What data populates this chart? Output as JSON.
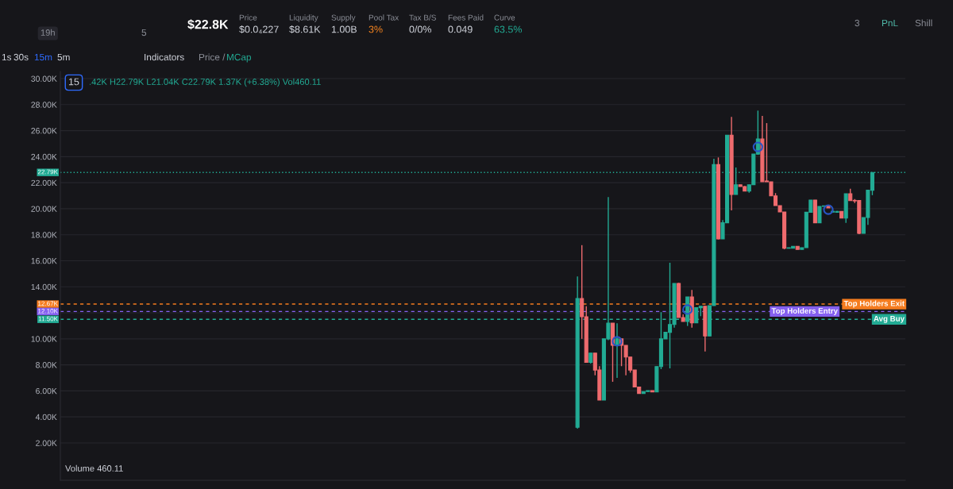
{
  "chart_data": {
    "type": "candlestick",
    "tick_labels": "y",
    "grid": "y",
    "categories": [
      null,
      null,
      null,
      null,
      null,
      null,
      null,
      null,
      null,
      null,
      null,
      null,
      null,
      null,
      null,
      null,
      null,
      null,
      null,
      null,
      null,
      null,
      null,
      null,
      null,
      null,
      null,
      null,
      null,
      null,
      null,
      null,
      null,
      null,
      null,
      null,
      null,
      null,
      null,
      null,
      null,
      null,
      null,
      null,
      null,
      null,
      null,
      null,
      null,
      null,
      null,
      null,
      null,
      null,
      null,
      null,
      null,
      null,
      null,
      null,
      null,
      null,
      null,
      null,
      null,
      null,
      null,
      null,
      null,
      null,
      null,
      null,
      null,
      null,
      null,
      null,
      null,
      null,
      null,
      null,
      null,
      null,
      null,
      null,
      null,
      null,
      null,
      null,
      null,
      null,
      null,
      null,
      null,
      null,
      null,
      null,
      null,
      null,
      null,
      null,
      null,
      null,
      null,
      null,
      null,
      null,
      null,
      null,
      null,
      null,
      null,
      null,
      null,
      null,
      null,
      null,
      null,
      null,
      null,
      null,
      null,
      null,
      null,
      null,
      null,
      null,
      null,
      null,
      null,
      null,
      null,
      null,
      null,
      null,
      null,
      null,
      null,
      null,
      null,
      null,
      null,
      null,
      null,
      null,
      null,
      null,
      null,
      null,
      null,
      null,
      null,
      null,
      null,
      null,
      null,
      null,
      null,
      null,
      null,
      null,
      null,
      null,
      null,
      null,
      null,
      null,
      null,
      null,
      null,
      null,
      null,
      null,
      null,
      null,
      null,
      null,
      null,
      null,
      null,
      null,
      null,
      null,
      null,
      null,
      null,
      null,
      null,
      null,
      null,
      null,
      null,
      null
    ],
    "ohlc": [
      null,
      null,
      null,
      null,
      null,
      null,
      null,
      null,
      null,
      null,
      null,
      null,
      null,
      null,
      null,
      null,
      null,
      null,
      null,
      null,
      null,
      null,
      null,
      null,
      null,
      null,
      null,
      null,
      null,
      null,
      null,
      null,
      null,
      null,
      null,
      null,
      null,
      null,
      null,
      null,
      null,
      null,
      null,
      null,
      null,
      null,
      null,
      null,
      null,
      null,
      null,
      null,
      null,
      null,
      null,
      null,
      null,
      null,
      null,
      null,
      null,
      null,
      null,
      null,
      null,
      null,
      null,
      null,
      null,
      null,
      null,
      null,
      null,
      null,
      null,
      null,
      null,
      null,
      null,
      null,
      null,
      null,
      null,
      null,
      null,
      null,
      null,
      null,
      null,
      null,
      null,
      null,
      null,
      null,
      null,
      null,
      null,
      null,
      null,
      null,
      null,
      null,
      null,
      null,
      null,
      null,
      null,
      null,
      null,
      null,
      null,
      null,
      null,
      null,
      null,
      null,
      null,
      [
        3.2,
        14.8,
        3.1,
        13.1
      ],
      [
        13.1,
        17.2,
        10.0,
        11.7
      ],
      [
        11.7,
        12.5,
        8.2,
        8.2
      ],
      [
        8.2,
        8.9,
        8.1,
        8.9
      ],
      [
        8.9,
        8.9,
        7.2,
        7.6
      ],
      [
        7.6,
        7.9,
        5.3,
        5.3
      ],
      [
        5.3,
        10.0,
        5.3,
        10.0
      ],
      [
        10.0,
        20.9,
        9.9,
        11.2
      ],
      [
        11.2,
        11.2,
        6.7,
        9.5
      ],
      [
        9.5,
        11.2,
        7.0,
        10.0
      ],
      [
        10.0,
        10.0,
        7.9,
        9.5
      ],
      [
        9.5,
        9.5,
        7.2,
        8.6
      ],
      [
        8.6,
        8.6,
        7.4,
        7.6
      ],
      [
        7.6,
        7.6,
        6.3,
        6.3
      ],
      [
        6.3,
        6.3,
        5.8,
        5.8
      ],
      [
        5.8,
        5.95,
        5.8,
        5.95
      ],
      [
        5.95,
        6.02,
        5.95,
        6.02
      ],
      [
        6.02,
        6.02,
        5.92,
        5.92
      ],
      [
        5.92,
        7.87,
        5.92,
        7.87
      ],
      [
        7.87,
        12.05,
        7.67,
        10.0
      ],
      [
        10.0,
        10.5,
        10.0,
        10.5
      ],
      [
        10.5,
        15.85,
        7.73,
        11.1
      ],
      [
        11.1,
        14.26,
        10.86,
        14.26
      ],
      [
        14.26,
        14.3,
        11.64,
        11.64
      ],
      [
        11.64,
        11.88,
        11.33,
        11.33
      ],
      [
        11.33,
        13.22,
        10.99,
        13.22
      ],
      [
        13.22,
        13.76,
        10.86,
        11.23
      ],
      [
        11.23,
        12.39,
        11.23,
        12.39
      ],
      [
        12.39,
        12.51,
        11.74,
        12.51
      ],
      [
        12.51,
        12.51,
        9.03,
        10.22
      ],
      [
        10.22,
        12.55,
        10.22,
        12.55
      ],
      [
        12.55,
        23.84,
        12.55,
        23.39
      ],
      [
        23.39,
        23.94,
        17.64,
        17.68
      ],
      [
        17.68,
        19.12,
        17.68,
        18.92
      ],
      [
        18.92,
        25.65,
        18.92,
        25.65
      ],
      [
        25.65,
        27.05,
        19.87,
        21.09
      ],
      [
        21.09,
        23.17,
        21.09,
        21.84
      ],
      [
        21.84,
        21.84,
        21.7,
        21.7
      ],
      [
        21.7,
        21.75,
        21.36,
        21.36
      ],
      [
        21.36,
        21.84,
        21.23,
        21.84
      ],
      [
        21.84,
        24.2,
        21.84,
        24.2
      ],
      [
        24.2,
        27.54,
        24.14,
        25.36
      ],
      [
        25.36,
        27.13,
        22.07,
        22.07
      ],
      [
        22.13,
        26.58,
        22.07,
        22.07
      ],
      [
        22.07,
        22.07,
        20.99,
        20.99
      ],
      [
        20.99,
        21.2,
        20.24,
        20.24
      ],
      [
        20.24,
        20.24,
        19.75,
        19.75
      ],
      [
        19.75,
        19.75,
        16.88,
        16.96
      ],
      [
        16.96,
        17.0,
        16.96,
        17.0
      ],
      [
        16.96,
        17.11,
        16.96,
        17.11
      ],
      [
        17.11,
        17.11,
        16.87,
        16.87
      ],
      [
        16.87,
        17.01,
        16.87,
        17.01
      ],
      [
        17.01,
        19.73,
        17.01,
        19.73
      ],
      [
        19.73,
        20.67,
        19.73,
        20.67
      ],
      [
        20.67,
        20.67,
        18.92,
        18.92
      ],
      [
        18.92,
        20.18,
        18.92,
        20.18
      ],
      [
        20.18,
        20.22,
        20.18,
        20.22
      ],
      [
        20.22,
        20.22,
        20.06,
        20.06
      ],
      [
        19.74,
        19.93,
        19.74,
        19.8
      ],
      [
        19.72,
        19.82,
        19.72,
        19.8
      ],
      [
        19.8,
        19.8,
        19.28,
        19.28
      ],
      [
        19.28,
        21.15,
        18.92,
        21.15
      ],
      [
        21.15,
        21.54,
        20.62,
        20.62
      ],
      [
        20.64,
        20.75,
        20.44,
        20.6
      ],
      [
        20.64,
        20.64,
        18.04,
        18.1
      ],
      [
        18.1,
        19.32,
        18.1,
        19.32
      ],
      [
        19.32,
        21.42,
        18.76,
        21.42
      ],
      [
        21.42,
        22.79,
        21.04,
        22.79
      ],
      null,
      null,
      null,
      null,
      null,
      null,
      null
    ],
    "colors": [
      null,
      null,
      null,
      null,
      null,
      null,
      null,
      null,
      null,
      null,
      null,
      null,
      null,
      null,
      null,
      null,
      null,
      null,
      null,
      null,
      null,
      null,
      null,
      null,
      null,
      null,
      null,
      null,
      null,
      null,
      null,
      null,
      null,
      null,
      null,
      null,
      null,
      null,
      null,
      null,
      null,
      null,
      null,
      null,
      null,
      null,
      null,
      null,
      null,
      null,
      null,
      null,
      null,
      null,
      null,
      null,
      null,
      null,
      null,
      null,
      null,
      null,
      null,
      null,
      null,
      null,
      null,
      null,
      null,
      null,
      null,
      null,
      null,
      null,
      null,
      null,
      null,
      null,
      null,
      null,
      null,
      null,
      null,
      null,
      null,
      null,
      null,
      null,
      null,
      null,
      null,
      null,
      null,
      null,
      null,
      null,
      null,
      null,
      null,
      null,
      null,
      null,
      null,
      null,
      null,
      null,
      null,
      null,
      null,
      null,
      null,
      null,
      null,
      null,
      null,
      null,
      null,
      "#22ab94",
      "#ef6b6e",
      "#ef6b6e",
      "#22ab94",
      "#ef6b6e",
      "#ef6b6e",
      "#22ab94",
      "#22ab94",
      "#ef6b6e",
      "#22ab94",
      "#ef6b6e",
      "#ef6b6e",
      "#ef6b6e",
      "#ef6b6e",
      "#ef6b6e",
      "#22ab94",
      "#22ab94",
      "#ef6b6e",
      "#22ab94",
      "#22ab94",
      "#22ab94",
      "#22ab94",
      "#22ab94",
      "#ef6b6e",
      "#ef6b6e",
      "#22ab94",
      "#ef6b6e",
      "#22ab94",
      "#22ab94",
      "#ef6b6e",
      "#22ab94",
      "#22ab94",
      "#ef6b6e",
      "#22ab94",
      "#22ab94",
      "#ef6b6e",
      "#22ab94",
      "#ef6b6e",
      "#ef6b6e",
      "#22ab94",
      "#22ab94",
      "#22ab94",
      "#ef6b6e",
      "#ef6b6e",
      "#ef6b6e",
      "#ef6b6e",
      "#ef6b6e",
      "#ef6b6e",
      "#22ab94",
      "#22ab94",
      "#ef6b6e",
      "#22ab94",
      "#22ab94",
      "#22ab94",
      "#ef6b6e",
      "#22ab94",
      "#22ab94",
      "#ef6b6e",
      "#22ab94",
      "#22ab94",
      "#ef6b6e",
      "#22ab94",
      "#ef6b6e",
      "#ef6b6e",
      "#ef6b6e",
      "#22ab94",
      "#22ab94",
      "#22ab94",
      null,
      null,
      null,
      null,
      null,
      null,
      null
    ],
    "series": [
      {
        "type": "scatter",
        "marker": "circle",
        "color": "#2855c4",
        "values": [
          null,
          null,
          null,
          null,
          null,
          null,
          null,
          null,
          null,
          null,
          null,
          null,
          null,
          null,
          null,
          null,
          null,
          null,
          null,
          null,
          null,
          null,
          null,
          null,
          null,
          null,
          null,
          null,
          null,
          null,
          null,
          null,
          null,
          null,
          null,
          null,
          null,
          null,
          null,
          null,
          null,
          null,
          null,
          null,
          null,
          null,
          null,
          null,
          null,
          null,
          null,
          null,
          null,
          null,
          null,
          null,
          null,
          null,
          null,
          null,
          null,
          null,
          null,
          null,
          null,
          null,
          null,
          null,
          null,
          null,
          null,
          null,
          null,
          null,
          null,
          null,
          null,
          null,
          null,
          null,
          null,
          null,
          null,
          null,
          null,
          null,
          null,
          null,
          null,
          null,
          null,
          null,
          null,
          null,
          null,
          null,
          null,
          null,
          null,
          null,
          null,
          null,
          null,
          null,
          null,
          null,
          null,
          null,
          null,
          null,
          null,
          null,
          null,
          null,
          null,
          null,
          null,
          null,
          null,
          null,
          null,
          null,
          null,
          null,
          null,
          null,
          9.81,
          null,
          null,
          null,
          null,
          null,
          null,
          null,
          null,
          null,
          null,
          null,
          null,
          null,
          null,
          null,
          12.25,
          null,
          null,
          null,
          null,
          null,
          null,
          null,
          null,
          null,
          null,
          null,
          null,
          null,
          null,
          null,
          24.75,
          null,
          null,
          null,
          null,
          null,
          null,
          null,
          null,
          null,
          null,
          null,
          null,
          null,
          null,
          null,
          19.93,
          null,
          null,
          null,
          null,
          null,
          null,
          null,
          null,
          null,
          null,
          null,
          null,
          null,
          null,
          null,
          null,
          null
        ]
      }
    ],
    "ylim": [
      -0.87,
      30.55
    ],
    "yticks": [
      {
        "value": 2,
        "label": "2.00K"
      },
      {
        "value": 4,
        "label": "4.00K"
      },
      {
        "value": 6,
        "label": "6.00K"
      },
      {
        "value": 8,
        "label": "8.00K"
      },
      {
        "value": 10,
        "label": "10.00K"
      },
      {
        "value": 12,
        "label": null
      },
      {
        "value": 14,
        "label": "14.00K"
      },
      {
        "value": 16,
        "label": "16.00K"
      },
      {
        "value": 18,
        "label": "18.00K"
      },
      {
        "value": 20,
        "label": "20.00K"
      },
      {
        "value": 22,
        "label": "22.00K"
      },
      {
        "value": 24,
        "label": "24.00K"
      },
      {
        "value": 26,
        "label": "26.00K"
      },
      {
        "value": 28,
        "label": "28.00K"
      },
      {
        "value": 30,
        "label": "30.00K"
      }
    ],
    "ref_lines": [
      {
        "axis": "y",
        "value": 22.79,
        "label": "22.79K",
        "line_style": "dotted",
        "color": "#22ab94"
      },
      {
        "axis": "y",
        "value": 12.67,
        "label": "12.67K",
        "line_style": "dashed",
        "color": "#f57c1f"
      },
      {
        "axis": "y",
        "value": 12.1,
        "label": "12.10K",
        "line_style": "dashed",
        "color": "#8560f0"
      },
      {
        "axis": "y",
        "value": 11.5,
        "label": "11.50K",
        "line_style": "dashed",
        "color": "#22ab94"
      }
    ],
    "annotations": [
      "19h",
      "5",
      "$22.8K",
      "Price",
      "$0.0₄227",
      "Liquidity",
      "$8.61K",
      "Supply",
      "1.00B",
      "Pool Tax",
      "3%",
      "Tax B/S",
      "0/0%",
      "Fees Paid",
      "0.049",
      "Curve",
      "63.5%",
      "1s",
      "30s",
      "15m",
      "5m",
      "Indicators",
      "Price /",
      "MCap",
      "3",
      "PnL",
      "Shill",
      "15",
      ".42K H22.79K L21.04K C22.79K 1.37K (+6.38%) Vol460.11",
      "Volume 460.11",
      {
        "text": "Top Holders Exit",
        "y": 12.67
      },
      {
        "text": "Top Holders Entry",
        "y": 12.1
      },
      {
        "text": "Avg Buy",
        "y": 11.5
      }
    ]
  }
}
